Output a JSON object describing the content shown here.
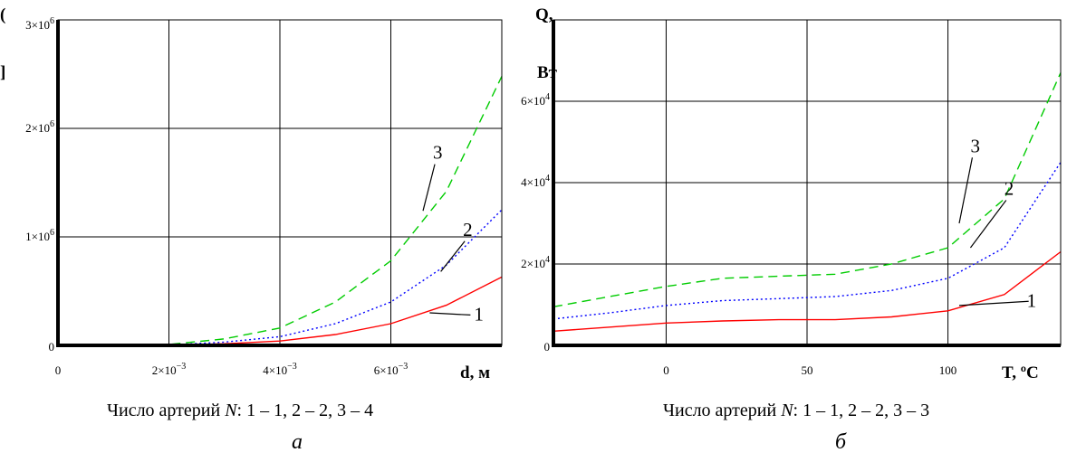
{
  "chart_data": [
    {
      "type": "line",
      "xlabel": "d, м",
      "ylabel": "Q, Вт",
      "xlim": [
        0,
        0.008
      ],
      "ylim": [
        0,
        3000000
      ],
      "x_ticks": [
        {
          "value": 0,
          "base": "0",
          "exp": ""
        },
        {
          "value": 0.002,
          "base": "2×10",
          "exp": "−3"
        },
        {
          "value": 0.004,
          "base": "4×10",
          "exp": "−3"
        },
        {
          "value": 0.006,
          "base": "6×10",
          "exp": "−3"
        }
      ],
      "y_ticks": [
        {
          "value": 0,
          "base": "0",
          "exp": ""
        },
        {
          "value": 1000000,
          "base": "1×10",
          "exp": "6"
        },
        {
          "value": 2000000,
          "base": "2×10",
          "exp": "6"
        },
        {
          "value": 3000000,
          "base": "3×10",
          "exp": "6"
        }
      ],
      "grid": true,
      "series": [
        {
          "name": "1",
          "color": "#ff0000",
          "dash": "solid",
          "x": [
            0.001,
            0.002,
            0.003,
            0.004,
            0.005,
            0.006,
            0.007,
            0.008
          ],
          "y": [
            0,
            2000,
            15000,
            40000,
            100000,
            200000,
            370000,
            630000
          ]
        },
        {
          "name": "2",
          "color": "#0000ff",
          "dash": "dot",
          "x": [
            0.001,
            0.002,
            0.003,
            0.004,
            0.005,
            0.006,
            0.007,
            0.008
          ],
          "y": [
            0,
            4000,
            30000,
            80000,
            200000,
            400000,
            740000,
            1250000
          ]
        },
        {
          "name": "3",
          "color": "#00cc00",
          "dash": "dash",
          "x": [
            0.001,
            0.002,
            0.003,
            0.004,
            0.005,
            0.006,
            0.007,
            0.008
          ],
          "y": [
            0,
            8000,
            60000,
            160000,
            400000,
            780000,
            1420000,
            2480000
          ]
        }
      ],
      "labels": [
        {
          "text": "1",
          "at": [
            0.0075,
            230000
          ],
          "pointer": [
            0.0067,
            300000
          ]
        },
        {
          "text": "2",
          "at": [
            0.0073,
            1010000
          ],
          "pointer": [
            0.0069,
            680000
          ]
        },
        {
          "text": "3",
          "at": [
            0.00676,
            1720000
          ],
          "pointer": [
            0.00658,
            1240000
          ]
        }
      ],
      "caption": {
        "prefix": "Число артерий ",
        "var": "N",
        "suffix": ": 1 – 1, 2 – 2, 3 – 4"
      },
      "panel": "а"
    },
    {
      "type": "line",
      "xlabel": "T, ºC",
      "ylabel": "Q, Вт",
      "xlim": [
        -40,
        140
      ],
      "ylim": [
        0,
        80000
      ],
      "x_ticks": [
        {
          "value": 0,
          "base": "0",
          "exp": ""
        },
        {
          "value": 50,
          "base": "50",
          "exp": ""
        },
        {
          "value": 100,
          "base": "100",
          "exp": ""
        }
      ],
      "y_ticks": [
        {
          "value": 0,
          "base": "0",
          "exp": ""
        },
        {
          "value": 20000,
          "base": "2×10",
          "exp": "4"
        },
        {
          "value": 40000,
          "base": "4×10",
          "exp": "4"
        },
        {
          "value": 60000,
          "base": "6×10",
          "exp": "4"
        }
      ],
      "grid": true,
      "series": [
        {
          "name": "1",
          "color": "#ff0000",
          "dash": "solid",
          "x": [
            -40,
            -20,
            0,
            20,
            40,
            60,
            80,
            100,
            120,
            140
          ],
          "y": [
            3500,
            4500,
            5500,
            6000,
            6300,
            6300,
            7000,
            8500,
            12500,
            23000
          ]
        },
        {
          "name": "2",
          "color": "#0000ff",
          "dash": "dot",
          "x": [
            -40,
            -20,
            0,
            20,
            40,
            60,
            80,
            100,
            120,
            140
          ],
          "y": [
            6500,
            8000,
            9800,
            11000,
            11500,
            12000,
            13500,
            16500,
            24000,
            45000
          ]
        },
        {
          "name": "3",
          "color": "#00cc00",
          "dash": "dash",
          "x": [
            -40,
            -20,
            0,
            20,
            40,
            60,
            80,
            100,
            120,
            140
          ],
          "y": [
            9500,
            12000,
            14500,
            16500,
            17000,
            17500,
            20000,
            24000,
            36000,
            67000
          ]
        }
      ],
      "labels": [
        {
          "text": "1",
          "at": [
            128,
            9500
          ],
          "pointer": [
            104,
            9800
          ]
        },
        {
          "text": "2",
          "at": [
            120,
            37000
          ],
          "pointer": [
            108,
            24000
          ]
        },
        {
          "text": "3",
          "at": [
            108,
            47500
          ],
          "pointer": [
            104,
            30000
          ]
        }
      ],
      "caption": {
        "prefix": "Число артерий ",
        "var": "N",
        "suffix": ": 1 – 1, 2 – 2, 3 – 3"
      },
      "panel": "б"
    }
  ]
}
